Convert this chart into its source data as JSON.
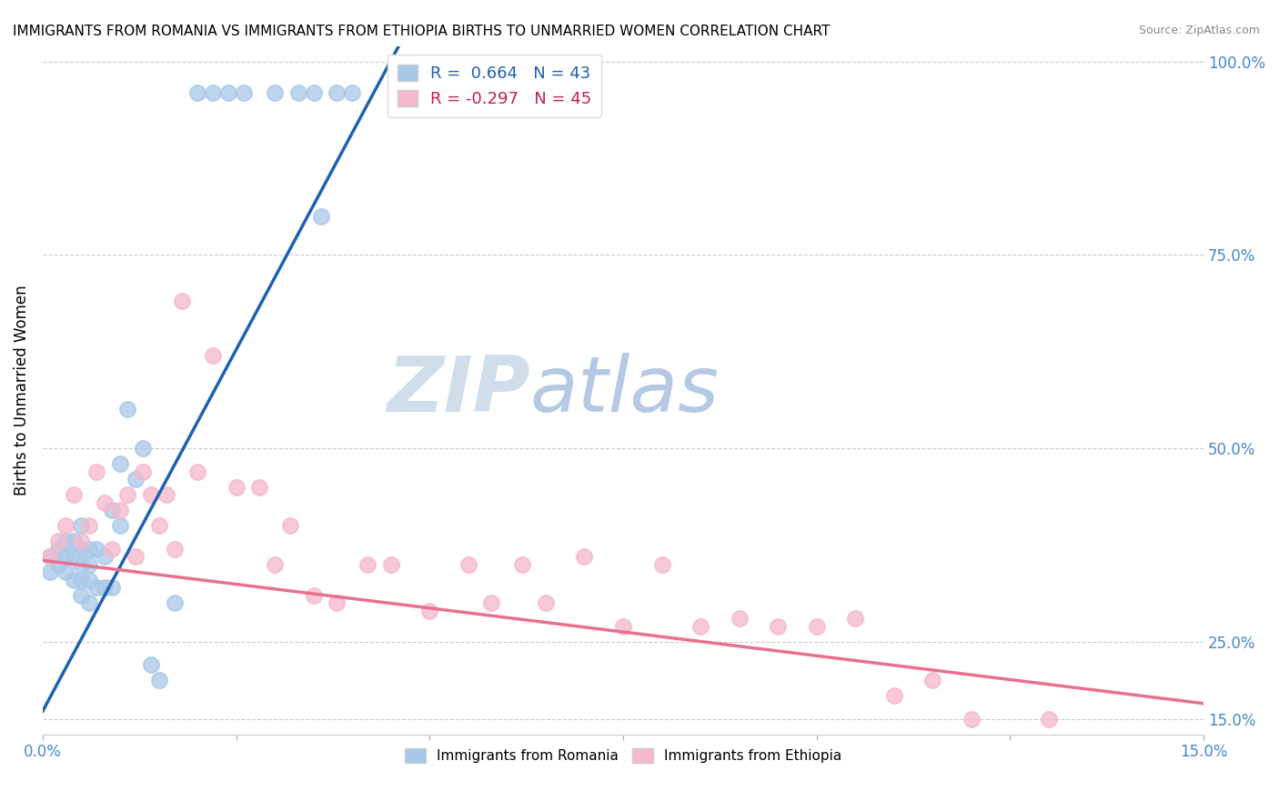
{
  "title": "IMMIGRANTS FROM ROMANIA VS IMMIGRANTS FROM ETHIOPIA BIRTHS TO UNMARRIED WOMEN CORRELATION CHART",
  "source": "Source: ZipAtlas.com",
  "ylabel": "Births to Unmarried Women",
  "xmin": 0.0,
  "xmax": 0.15,
  "ymin": 0.13,
  "ymax": 1.02,
  "right_yticks": [
    0.15,
    0.25,
    0.5,
    0.75,
    1.0
  ],
  "right_yticklabels": [
    "15.0%",
    "25.0%",
    "50.0%",
    "75.0%",
    "100.0%"
  ],
  "xtick_vals": [
    0.0,
    0.025,
    0.05,
    0.075,
    0.1,
    0.125,
    0.15
  ],
  "xtick_labels": [
    "0.0%",
    "",
    "",
    "",
    "",
    "",
    "15.0%"
  ],
  "romania_R": "0.664",
  "romania_N": "43",
  "ethiopia_R": "-0.297",
  "ethiopia_N": "45",
  "romania_dot_color": "#a8c8e8",
  "ethiopia_dot_color": "#f5b8cc",
  "romania_line_color": "#2060b0",
  "ethiopia_line_color": "#e87090",
  "legend_romania_text_color": "#2060b0",
  "legend_ethiopia_text_color": "#c02050",
  "grid_color": "#cccccc",
  "axis_color": "#4488cc",
  "watermark_zip_color": "#c8d8e8",
  "watermark_atlas_color": "#a8c0e0",
  "romania_line_x0": 0.0,
  "romania_line_y0": 0.16,
  "romania_line_x1": 0.046,
  "romania_line_y1": 1.02,
  "ethiopia_line_x0": 0.0,
  "ethiopia_line_y0": 0.355,
  "ethiopia_line_x1": 0.15,
  "ethiopia_line_y1": 0.17,
  "romania_x": [
    0.001,
    0.001,
    0.002,
    0.002,
    0.003,
    0.003,
    0.003,
    0.004,
    0.004,
    0.004,
    0.005,
    0.005,
    0.005,
    0.005,
    0.005,
    0.006,
    0.006,
    0.006,
    0.006,
    0.007,
    0.007,
    0.008,
    0.008,
    0.009,
    0.009,
    0.01,
    0.01,
    0.011,
    0.012,
    0.013,
    0.014,
    0.015,
    0.017,
    0.02,
    0.022,
    0.024,
    0.026,
    0.03,
    0.033,
    0.035,
    0.036,
    0.038,
    0.04
  ],
  "romania_y": [
    0.34,
    0.36,
    0.35,
    0.37,
    0.34,
    0.36,
    0.38,
    0.33,
    0.36,
    0.38,
    0.31,
    0.33,
    0.35,
    0.37,
    0.4,
    0.3,
    0.33,
    0.35,
    0.37,
    0.32,
    0.37,
    0.32,
    0.36,
    0.32,
    0.42,
    0.4,
    0.48,
    0.55,
    0.46,
    0.5,
    0.22,
    0.2,
    0.3,
    0.96,
    0.96,
    0.96,
    0.96,
    0.96,
    0.96,
    0.96,
    0.8,
    0.96,
    0.96
  ],
  "ethiopia_x": [
    0.001,
    0.002,
    0.003,
    0.004,
    0.005,
    0.006,
    0.007,
    0.008,
    0.009,
    0.01,
    0.011,
    0.012,
    0.013,
    0.014,
    0.015,
    0.016,
    0.017,
    0.018,
    0.02,
    0.022,
    0.025,
    0.028,
    0.03,
    0.032,
    0.035,
    0.038,
    0.042,
    0.045,
    0.05,
    0.055,
    0.058,
    0.062,
    0.065,
    0.07,
    0.075,
    0.08,
    0.085,
    0.09,
    0.095,
    0.1,
    0.105,
    0.11,
    0.115,
    0.12,
    0.13
  ],
  "ethiopia_y": [
    0.36,
    0.38,
    0.4,
    0.44,
    0.38,
    0.4,
    0.47,
    0.43,
    0.37,
    0.42,
    0.44,
    0.36,
    0.47,
    0.44,
    0.4,
    0.44,
    0.37,
    0.69,
    0.47,
    0.62,
    0.45,
    0.45,
    0.35,
    0.4,
    0.31,
    0.3,
    0.35,
    0.35,
    0.29,
    0.35,
    0.3,
    0.35,
    0.3,
    0.36,
    0.27,
    0.35,
    0.27,
    0.28,
    0.27,
    0.27,
    0.28,
    0.18,
    0.2,
    0.15,
    0.15
  ]
}
